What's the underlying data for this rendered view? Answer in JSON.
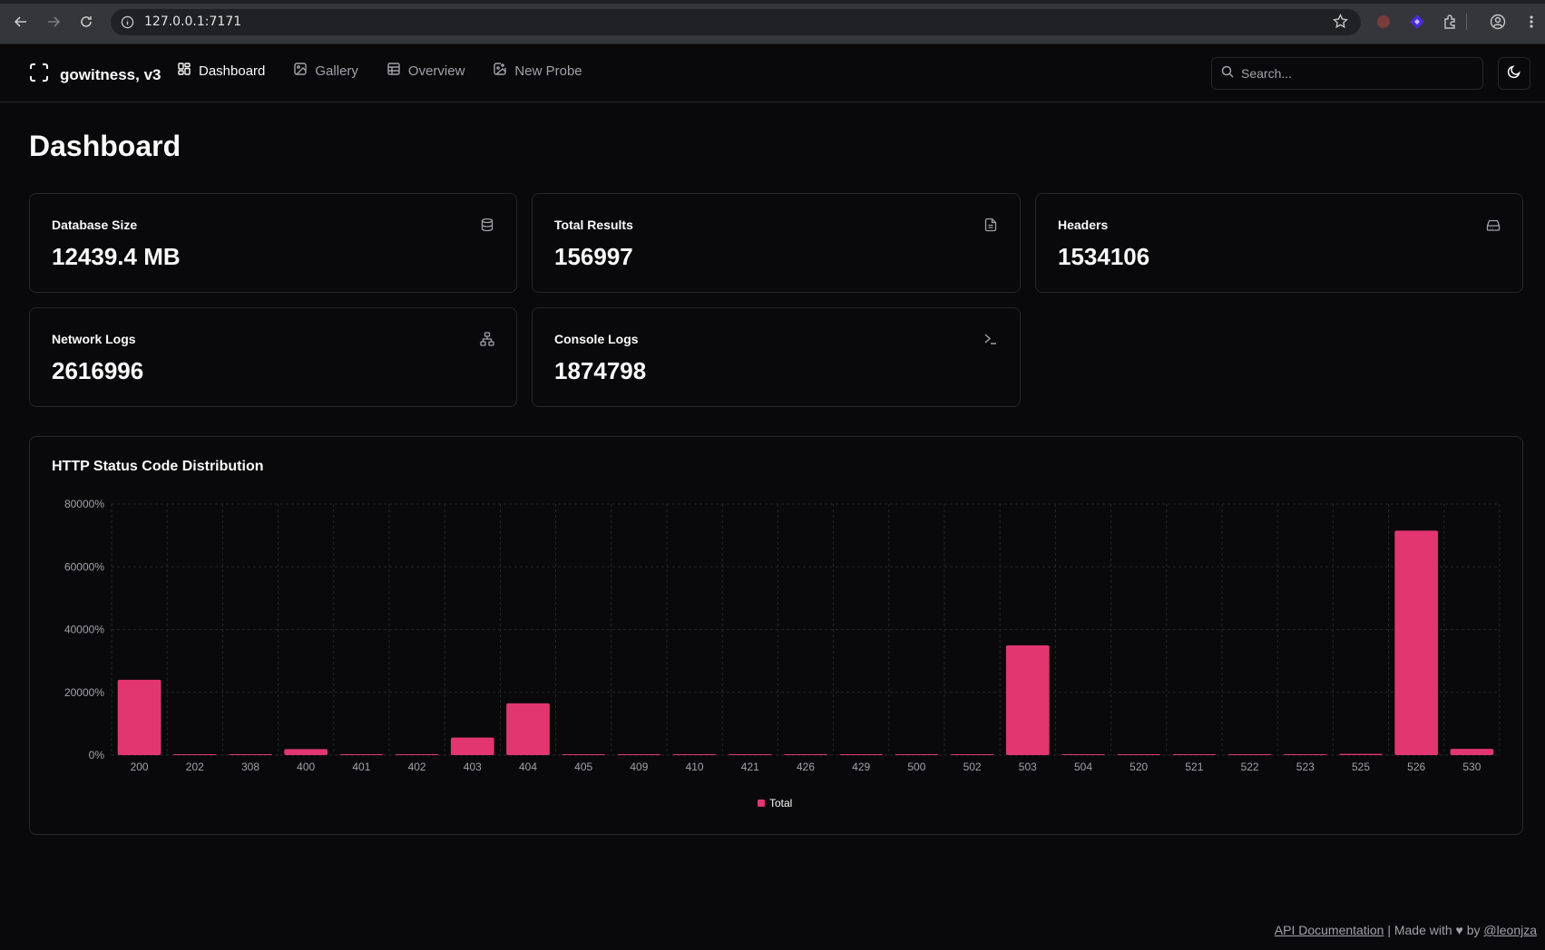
{
  "browser": {
    "url": "127.0.0.1:7171"
  },
  "app": {
    "brand": "gowitness, v3",
    "nav": [
      {
        "label": "Dashboard",
        "icon": "dashboard-icon",
        "active": true
      },
      {
        "label": "Gallery",
        "icon": "image-icon",
        "active": false
      },
      {
        "label": "Overview",
        "icon": "table-icon",
        "active": false
      },
      {
        "label": "New Probe",
        "icon": "image-plus-icon",
        "active": false
      }
    ],
    "search_placeholder": "Search..."
  },
  "page": {
    "title": "Dashboard"
  },
  "stats": [
    {
      "label": "Database Size",
      "value": "12439.4 MB",
      "icon": "database-icon"
    },
    {
      "label": "Total Results",
      "value": "156997",
      "icon": "file-text-icon"
    },
    {
      "label": "Headers",
      "value": "1534106",
      "icon": "hard-drive-icon"
    },
    {
      "label": "Network Logs",
      "value": "2616996",
      "icon": "network-icon"
    },
    {
      "label": "Console Logs",
      "value": "1874798",
      "icon": "terminal-icon"
    }
  ],
  "chart_data": {
    "type": "bar",
    "title": "HTTP Status Code Distribution",
    "categories": [
      "200",
      "202",
      "308",
      "400",
      "401",
      "402",
      "403",
      "404",
      "405",
      "409",
      "410",
      "421",
      "426",
      "429",
      "500",
      "502",
      "503",
      "504",
      "520",
      "521",
      "522",
      "523",
      "525",
      "526",
      "530"
    ],
    "series": [
      {
        "name": "Total",
        "color": "#e23670",
        "values": [
          24000,
          30,
          20,
          1900,
          300,
          20,
          5600,
          16500,
          30,
          20,
          20,
          20,
          20,
          200,
          300,
          300,
          35000,
          150,
          20,
          200,
          20,
          20,
          400,
          71500,
          2000
        ]
      }
    ],
    "ylim": [
      0,
      80000
    ],
    "yticks": [
      "0%",
      "20000%",
      "40000%",
      "60000%",
      "80000%"
    ],
    "ytick_values": [
      0,
      20000,
      40000,
      60000,
      80000
    ],
    "grid": true,
    "legend": "bottom"
  },
  "footer": {
    "api_link": "API Documentation",
    "made_with": "| Made with ♥ by",
    "author_link": "@leonjza"
  }
}
